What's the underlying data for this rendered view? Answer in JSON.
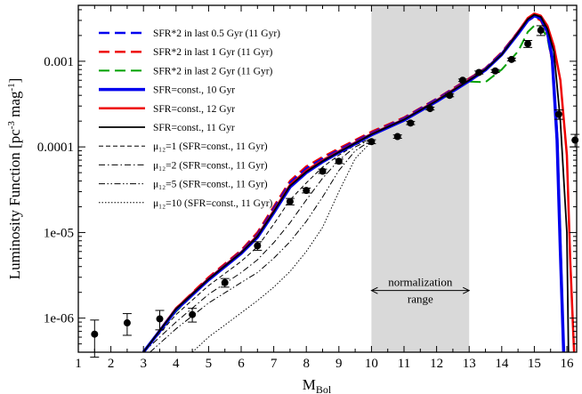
{
  "chart_data": {
    "type": "line",
    "xlabel": "M",
    "xlabel_sub": "Bol",
    "ylabel": "Luminosity Function [pc",
    "ylabel_sup1": "-3",
    "ylabel_mid": " mag",
    "ylabel_sup2": "-1",
    "ylabel_end": "]",
    "xlim": [
      1,
      16.3
    ],
    "ylim": [
      4e-07,
      0.0045
    ],
    "yscale": "log",
    "xticks": [
      1,
      2,
      3,
      4,
      5,
      6,
      7,
      8,
      9,
      10,
      11,
      12,
      13,
      14,
      15,
      16
    ],
    "yticks": [
      {
        "value": 1e-06,
        "label": "1e-06"
      },
      {
        "value": 1e-05,
        "label": "1e-05"
      },
      {
        "value": 0.0001,
        "label": "0.0001"
      },
      {
        "value": 0.001,
        "label": "0.001"
      }
    ],
    "shaded_region": {
      "x": [
        10,
        13
      ],
      "label_line1": "normalization",
      "label_line2": "range",
      "arrow_y": 2.1e-06,
      "color": "#d9d9d9"
    },
    "legend_position": "top-left",
    "series": [
      {
        "name": "SFR*2 in last 0.5 Gyr (11 Gyr)",
        "color": "#0000ee",
        "width": 2.5,
        "dash": "dash",
        "x": [
          3,
          4,
          5,
          6,
          6.5,
          7,
          7.5,
          8,
          8.5,
          9,
          10,
          11,
          12,
          13,
          13.5,
          14,
          14.5,
          14.8,
          15,
          15.2,
          15.4,
          15.55,
          15.7,
          15.8,
          15.9
        ],
        "y": [
          4e-07,
          1.25e-06,
          2.9e-06,
          6e-06,
          9.5e-06,
          1.9e-05,
          3.8e-05,
          5.6e-05,
          7.3e-05,
          9.2e-05,
          0.000145,
          0.000215,
          0.00036,
          0.00062,
          0.00082,
          0.00125,
          0.0022,
          0.0031,
          0.0034,
          0.0031,
          0.0022,
          0.0011,
          0.00014,
          8e-06,
          4e-07
        ]
      },
      {
        "name": "SFR*2 in last 1 Gyr (11 Gyr)",
        "color": "#ee0000",
        "width": 2.5,
        "dash": "dash",
        "x": [
          3,
          4,
          5,
          6,
          6.5,
          7,
          7.5,
          8,
          8.5,
          9,
          10,
          11,
          12,
          13,
          13.5,
          14,
          14.5,
          14.8,
          15,
          15.2,
          15.4,
          15.55,
          15.7,
          15.8,
          15.9
        ],
        "y": [
          4e-07,
          1.3e-06,
          3e-06,
          6.2e-06,
          1e-05,
          2e-05,
          4e-05,
          5.9e-05,
          7.6e-05,
          9.6e-05,
          0.00015,
          0.00022,
          0.000365,
          0.00063,
          0.00083,
          0.00127,
          0.0022,
          0.003,
          0.0033,
          0.003,
          0.0021,
          0.001,
          0.00013,
          7e-06,
          4e-07
        ]
      },
      {
        "name": "SFR*2 in last 2 Gyr (11 Gyr)",
        "color": "#00a000",
        "width": 2,
        "dash": "dash",
        "x": [
          3,
          4,
          5,
          6,
          6.5,
          7,
          7.5,
          8,
          8.5,
          9,
          10,
          11,
          12,
          13,
          13.5,
          14,
          14.5,
          14.8,
          15,
          15.2,
          15.4,
          15.55,
          15.7,
          15.8,
          15.9
        ],
        "y": [
          4e-07,
          1.2e-06,
          2.8e-06,
          5.8e-06,
          9e-06,
          1.8e-05,
          3.6e-05,
          5.3e-05,
          7e-05,
          8.8e-05,
          0.00014,
          0.000205,
          0.00034,
          0.00058,
          0.00057,
          0.0008,
          0.0013,
          0.0022,
          0.0026,
          0.0025,
          0.0019,
          0.00095,
          0.00012,
          6e-06,
          4e-07
        ]
      },
      {
        "name": "SFR=const., 10 Gyr",
        "color": "#0000ee",
        "width": 3.5,
        "dash": "solid",
        "x": [
          3,
          4,
          5,
          6,
          6.5,
          7,
          7.5,
          8,
          8.5,
          9,
          10,
          11,
          12,
          13,
          13.5,
          14,
          14.5,
          14.8,
          15,
          15.2,
          15.4,
          15.55,
          15.7,
          15.8,
          15.9
        ],
        "y": [
          4e-07,
          1.25e-06,
          2.8e-06,
          5.7e-06,
          8.8e-06,
          1.7e-05,
          3.4e-05,
          5e-05,
          6.7e-05,
          8.6e-05,
          0.000138,
          0.000205,
          0.00034,
          0.00059,
          0.00079,
          0.0012,
          0.0021,
          0.003,
          0.0034,
          0.0032,
          0.0022,
          0.0011,
          0.00012,
          6e-06,
          4e-07
        ]
      },
      {
        "name": "SFR=const., 12 Gyr",
        "color": "#ee0000",
        "width": 2.5,
        "dash": "solid",
        "x": [
          3,
          4,
          5,
          6,
          6.5,
          7,
          7.5,
          8,
          8.5,
          9,
          10,
          11,
          12,
          13,
          13.5,
          14,
          14.5,
          14.8,
          15,
          15.2,
          15.4,
          15.6,
          15.8,
          16,
          16.1,
          16.22
        ],
        "y": [
          4e-07,
          1.3e-06,
          2.9e-06,
          5.9e-06,
          9.2e-06,
          1.8e-05,
          3.6e-05,
          5.3e-05,
          7e-05,
          8.9e-05,
          0.000142,
          0.00021,
          0.00035,
          0.00061,
          0.00081,
          0.00123,
          0.0022,
          0.0032,
          0.0036,
          0.0034,
          0.0026,
          0.0015,
          0.0006,
          8e-05,
          5e-06,
          4e-07
        ]
      },
      {
        "name": "SFR=const., 11 Gyr",
        "color": "#000000",
        "width": 1.8,
        "dash": "solid",
        "x": [
          3,
          4,
          5,
          6,
          6.5,
          7,
          7.5,
          8,
          8.5,
          9,
          10,
          11,
          12,
          13,
          13.5,
          14,
          14.5,
          14.8,
          15,
          15.2,
          15.4,
          15.6,
          15.8,
          16,
          16.05
        ],
        "y": [
          4e-07,
          1.28e-06,
          2.85e-06,
          5.8e-06,
          9e-06,
          1.75e-05,
          3.5e-05,
          5.1e-05,
          6.8e-05,
          8.7e-05,
          0.00014,
          0.000208,
          0.000345,
          0.0006,
          0.0008,
          0.0012,
          0.00215,
          0.0031,
          0.0035,
          0.0033,
          0.0024,
          0.0013,
          0.0002,
          1e-05,
          4e-07
        ]
      },
      {
        "name": "μ₁₂=1 (SFR=const., 11 Gyr)",
        "color": "#000000",
        "width": 1,
        "dash": "dash-thin",
        "x": [
          3,
          4,
          5,
          6,
          6.5,
          7,
          7.5,
          8,
          8.5,
          9,
          9.5,
          10
        ],
        "y": [
          4e-07,
          1.1e-06,
          2.4e-06,
          4.6e-06,
          6.8e-06,
          1.25e-05,
          2.4e-05,
          3.8e-05,
          5.8e-05,
          8e-05,
          0.000105,
          0.000125
        ]
      },
      {
        "name": "μ₁₂=2 (SFR=const., 11 Gyr)",
        "color": "#000000",
        "width": 1,
        "dash": "dashdot",
        "x": [
          3,
          4,
          5,
          6,
          6.5,
          7,
          7.5,
          8,
          8.5,
          9,
          9.5,
          10
        ],
        "y": [
          4e-07,
          9e-07,
          1.9e-06,
          3.4e-06,
          4.8e-06,
          7.6e-06,
          1.3e-05,
          2.4e-05,
          4.3e-05,
          7e-05,
          0.0001,
          0.000123
        ]
      },
      {
        "name": "μ₁₂=5 (SFR=const., 11 Gyr)",
        "color": "#000000",
        "width": 1,
        "dash": "dashdotdot",
        "x": [
          3.2,
          4,
          5,
          6,
          6.5,
          7,
          7.5,
          8,
          8.5,
          9,
          9.5,
          10
        ],
        "y": [
          4e-07,
          7.5e-07,
          1.5e-06,
          2.6e-06,
          3.4e-06,
          5e-06,
          7.8e-06,
          1.35e-05,
          2.6e-05,
          5.3e-05,
          9e-05,
          0.00012
        ]
      },
      {
        "name": "μ₁₂=10 (SFR=const., 11 Gyr)",
        "color": "#000000",
        "width": 1,
        "dash": "dot",
        "x": [
          4.5,
          5,
          6,
          6.5,
          7,
          7.5,
          8,
          8.5,
          9,
          9.5,
          10
        ],
        "y": [
          4e-07,
          6e-07,
          1.15e-06,
          1.6e-06,
          2.3e-06,
          3.5e-06,
          6e-06,
          1.15e-05,
          3e-05,
          7.3e-05,
          0.000115
        ]
      }
    ],
    "observed": {
      "x": [
        1.5,
        2.5,
        3.5,
        4.5,
        5.5,
        6.5,
        7.5,
        8.0,
        8.5,
        9.0,
        10.0,
        10.8,
        11.2,
        11.8,
        12.4,
        12.8,
        13.3,
        13.8,
        14.3,
        14.8,
        15.2,
        15.75,
        16.25
      ],
      "y": [
        6.5e-07,
        8.8e-07,
        9.8e-07,
        1.1e-06,
        2.6e-06,
        7e-06,
        2.3e-05,
        3.1e-05,
        5.2e-05,
        6.8e-05,
        0.000115,
        0.000132,
        0.00019,
        0.00028,
        0.0004,
        0.0006,
        0.00074,
        0.00077,
        0.00105,
        0.0016,
        0.0023,
        0.00024,
        0.00012
      ],
      "err_low": [
        3e-07,
        2.5e-07,
        2.5e-07,
        2e-07,
        3e-07,
        8e-07,
        2e-06,
        2e-06,
        3e-06,
        4e-06,
        6e-06,
        6e-06,
        8e-06,
        1e-05,
        1.5e-05,
        2e-05,
        3e-05,
        3e-05,
        4e-05,
        0.00015,
        0.0003,
        3e-05,
        2e-05
      ],
      "err_high": [
        3e-07,
        2.5e-07,
        2.5e-07,
        2e-07,
        3e-07,
        8e-07,
        2e-06,
        2e-06,
        3e-06,
        4e-06,
        6e-06,
        6e-06,
        8e-06,
        1e-05,
        1.5e-05,
        2e-05,
        3e-05,
        3e-05,
        4e-05,
        0.00015,
        0.0003,
        3e-05,
        2e-05
      ]
    }
  }
}
